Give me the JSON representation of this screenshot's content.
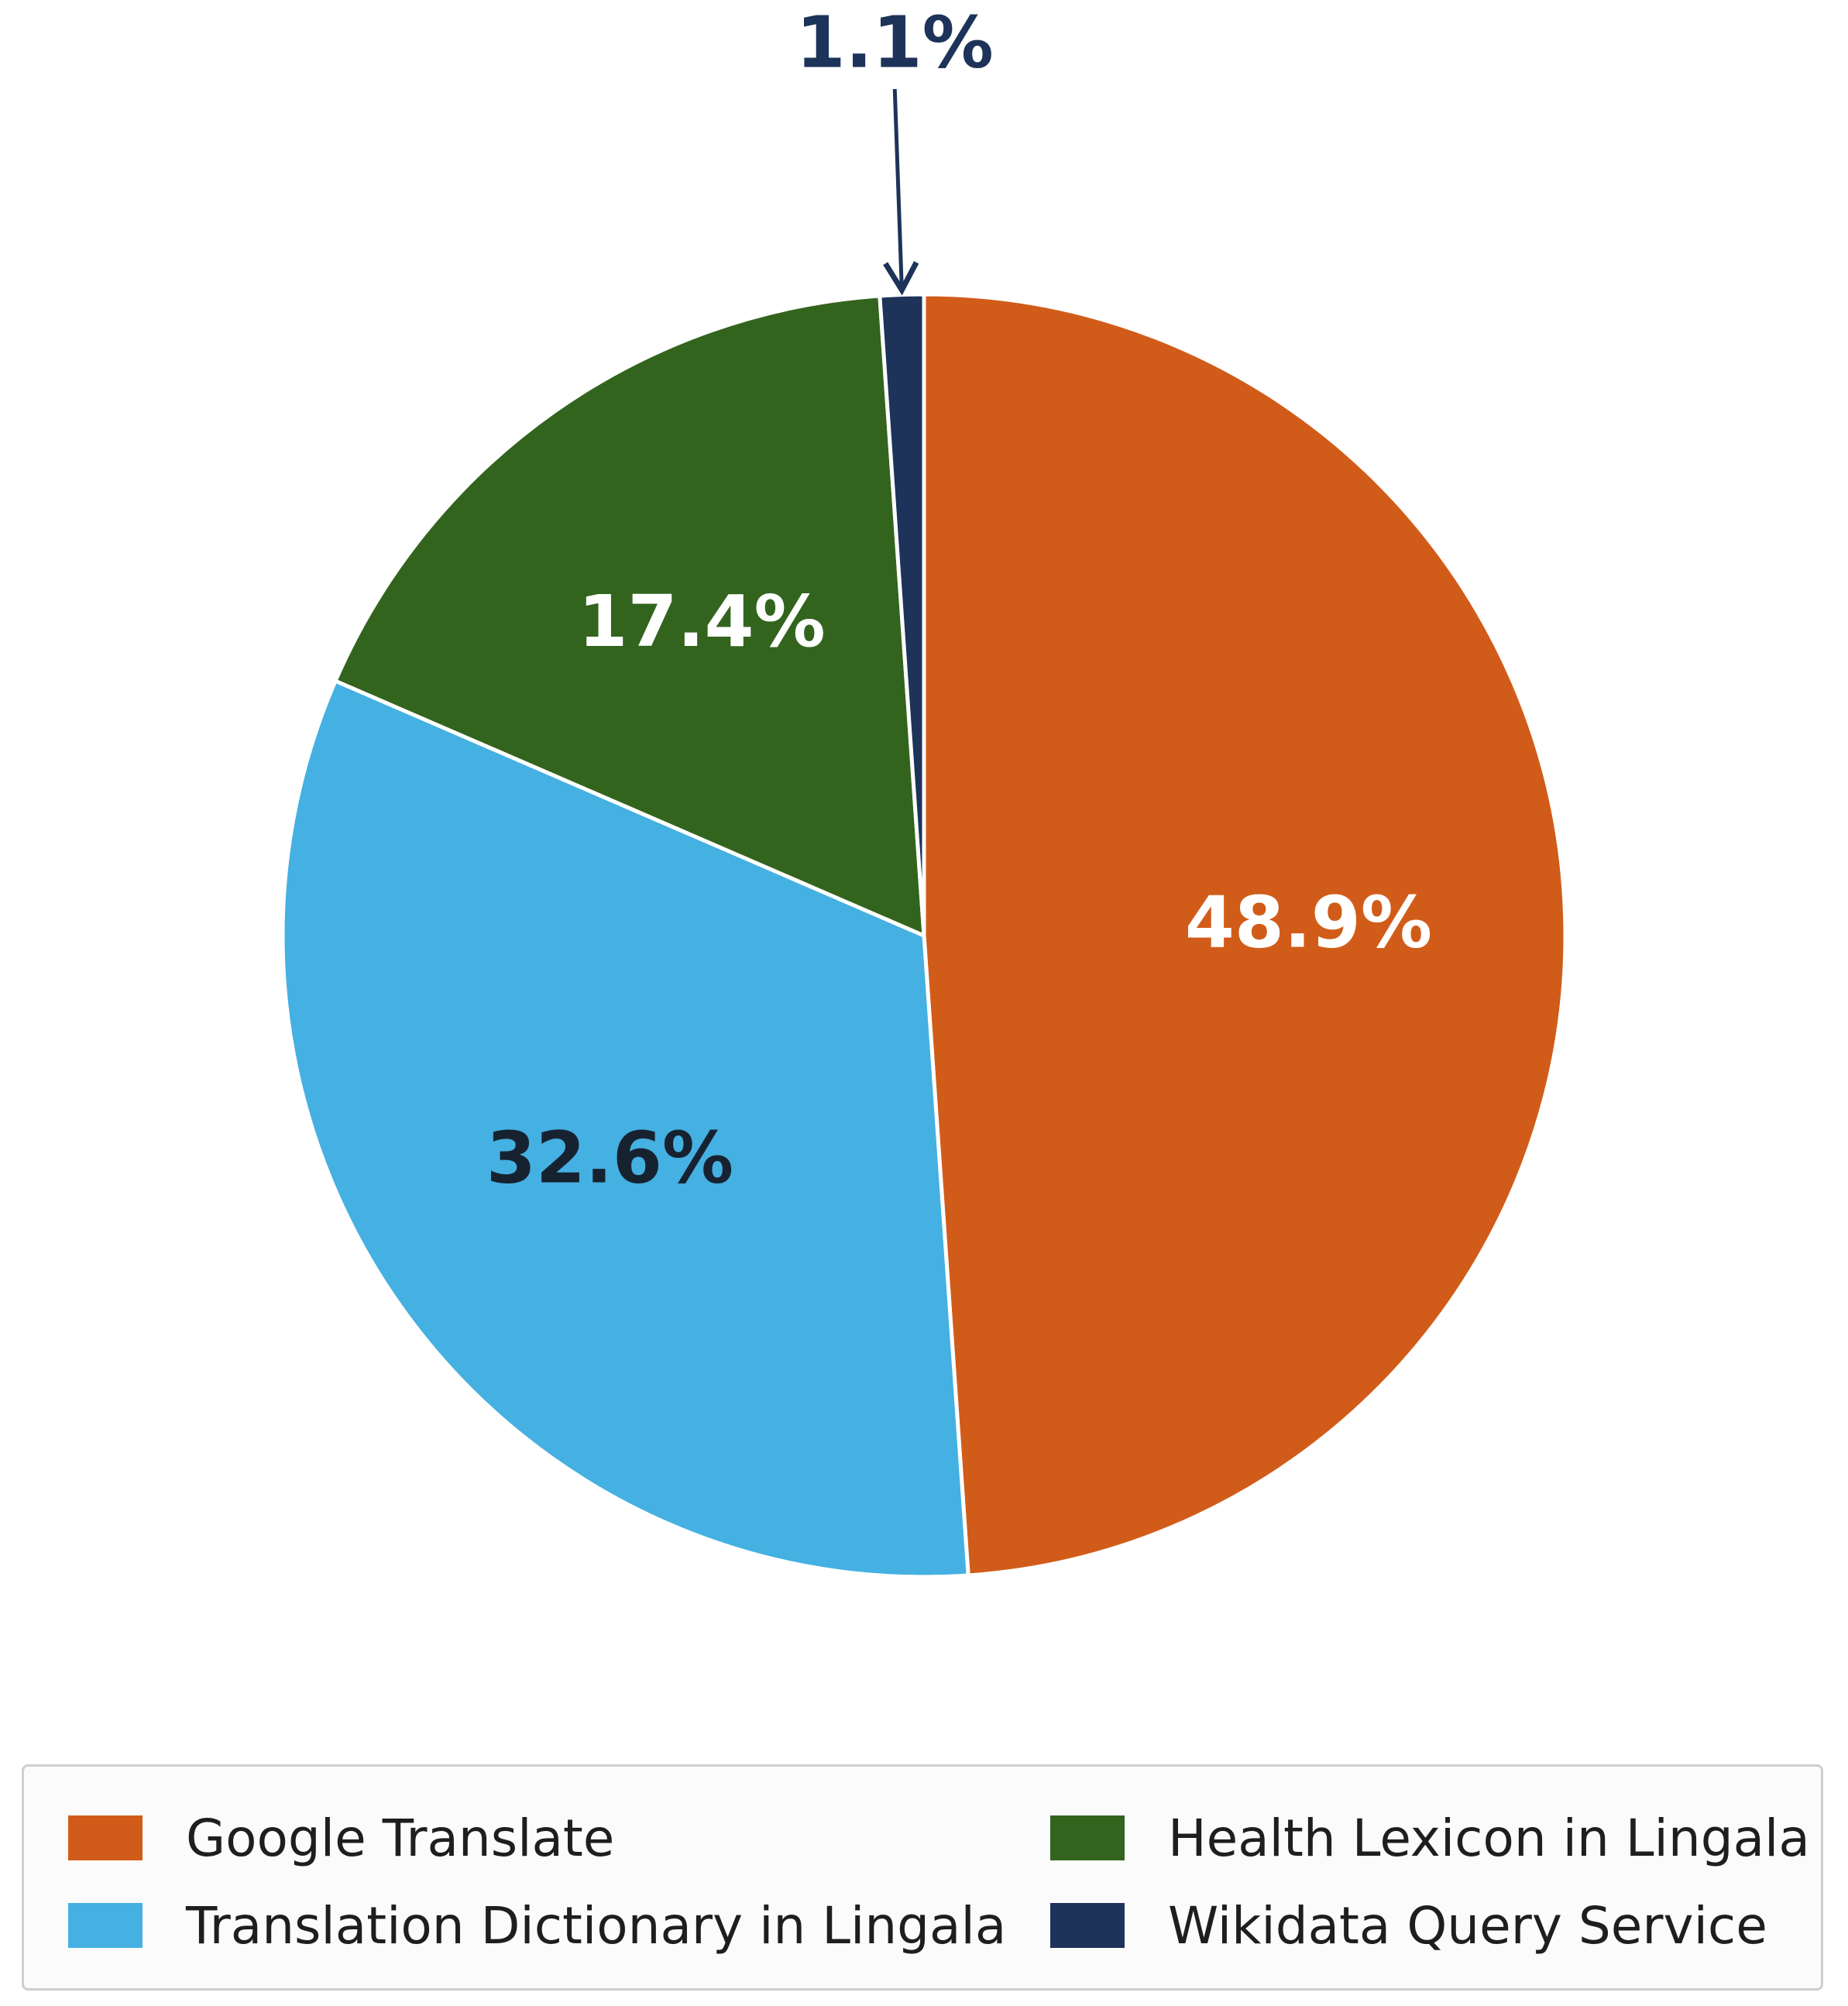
{
  "chart_data": {
    "type": "pie",
    "title": "",
    "categories": [
      "Google Translate",
      "Translation Dictionary in Lingala",
      "Health Lexicon in Lingala",
      "Wikidata Query Service"
    ],
    "values": [
      48.9,
      32.6,
      17.4,
      1.1
    ],
    "labels": [
      "48.9%",
      "32.6%",
      "17.4%",
      "1.1%"
    ],
    "colors": [
      "#d15c19",
      "#45b0e2",
      "#32641e",
      "#1d3359"
    ],
    "label_colors": [
      "#ffffff",
      "#172230",
      "#ffffff",
      "#1d3359"
    ],
    "start_angle": "12 o'clock",
    "direction": "clockwise",
    "legend_position": "bottom",
    "legend_columns": 2
  },
  "legend": {
    "items": [
      {
        "label": "Google Translate",
        "color": "#d15c19"
      },
      {
        "label": "Translation Dictionary in Lingala",
        "color": "#45b0e2"
      },
      {
        "label": "Health Lexicon in Lingala",
        "color": "#32641e"
      },
      {
        "label": "Wikidata Query Service",
        "color": "#1d3359"
      }
    ]
  }
}
